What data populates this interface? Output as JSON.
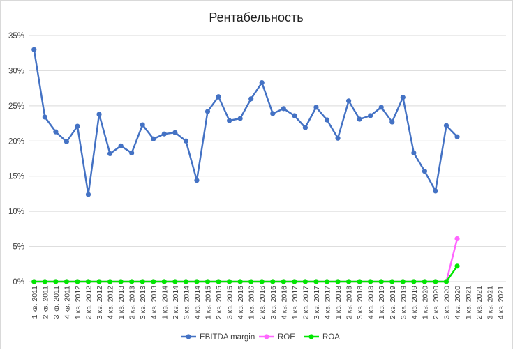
{
  "chart_data": {
    "type": "line",
    "title": "Рентабельность",
    "xlabel": "",
    "ylabel": "",
    "ylim": [
      0,
      35
    ],
    "yticks": [
      "0%",
      "5%",
      "10%",
      "15%",
      "20%",
      "25%",
      "30%",
      "35%"
    ],
    "y_unit": "%",
    "grid": true,
    "legend_position": "bottom",
    "categories": [
      "1 кв. 2011",
      "2 кв. 2011",
      "3 кв. 2011",
      "4 кв. 2011",
      "1 кв. 2012",
      "2 кв. 2012",
      "3 кв. 2012",
      "4 кв. 2012",
      "1 кв. 2013",
      "2 кв. 2013",
      "3 кв. 2013",
      "4 кв. 2013",
      "1 кв. 2014",
      "2 кв. 2014",
      "3 кв. 2014",
      "4 кв. 2014",
      "1 кв. 2015",
      "2 кв. 2015",
      "3 кв. 2015",
      "4 кв. 2015",
      "1 кв. 2016",
      "2 кв. 2016",
      "3 кв. 2016",
      "4 кв. 2016",
      "1 кв. 2017",
      "2 кв. 2017",
      "3 кв. 2017",
      "4 кв. 2017",
      "1 кв. 2018",
      "2 кв. 2018",
      "3 кв. 2018",
      "4 кв. 2018",
      "1 кв. 2019",
      "2 кв. 2019",
      "3 кв. 2019",
      "4 кв. 2019",
      "1 кв. 2020",
      "2 кв. 2020",
      "3 кв. 2020",
      "4 кв. 2020",
      "1 кв. 2021",
      "2 кв. 2021",
      "3 кв. 2021",
      "4 кв. 2021"
    ],
    "series": [
      {
        "name": "EBITDA margin",
        "color": "#4472c4",
        "values": [
          33.0,
          23.4,
          21.3,
          19.9,
          22.1,
          12.4,
          23.8,
          18.2,
          19.3,
          18.3,
          22.3,
          20.3,
          21.0,
          21.2,
          20.0,
          14.4,
          24.2,
          26.3,
          22.9,
          23.2,
          26.0,
          28.3,
          23.9,
          24.6,
          23.6,
          21.9,
          24.8,
          23.0,
          20.4,
          25.7,
          23.1,
          23.6,
          24.8,
          22.7,
          26.2,
          18.3,
          15.7,
          12.9,
          22.2,
          20.6,
          null,
          null,
          null,
          null
        ]
      },
      {
        "name": "ROE",
        "color": "#ff66ff",
        "values": [
          0,
          0,
          0,
          0,
          0,
          0,
          0,
          0,
          0,
          0,
          0,
          0,
          0,
          0,
          0,
          0,
          0,
          0,
          0,
          0,
          0,
          0,
          0,
          0,
          0,
          0,
          0,
          0,
          0,
          0,
          0,
          0,
          0,
          0,
          0,
          0,
          0,
          0,
          0,
          6.1,
          null,
          null,
          null,
          null
        ]
      },
      {
        "name": "ROA",
        "color": "#00e600",
        "values": [
          0,
          0,
          0,
          0,
          0,
          0,
          0,
          0,
          0,
          0,
          0,
          0,
          0,
          0,
          0,
          0,
          0,
          0,
          0,
          0,
          0,
          0,
          0,
          0,
          0,
          0,
          0,
          0,
          0,
          0,
          0,
          0,
          0,
          0,
          0,
          0,
          0,
          0,
          0,
          2.2,
          null,
          null,
          null,
          null
        ]
      }
    ]
  }
}
